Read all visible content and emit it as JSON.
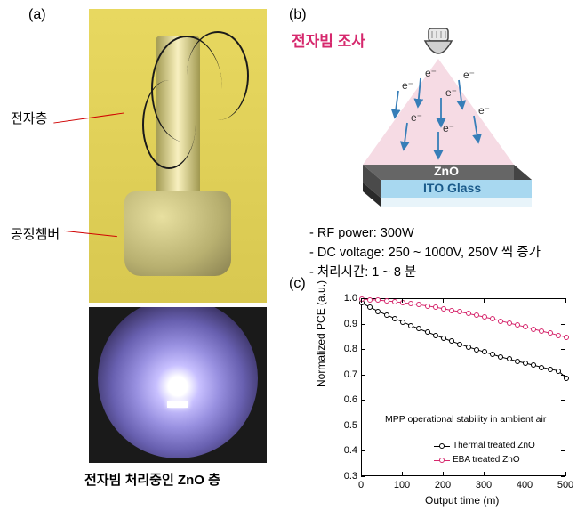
{
  "panel_labels": {
    "a": "(a)",
    "b": "(b)",
    "c": "(c)"
  },
  "panel_a": {
    "callout_top": "전자층",
    "callout_bottom": "공정챔버",
    "caption": "전자빔 처리중인 ZnO 층",
    "callout_color": "#d00000"
  },
  "panel_b": {
    "title": "전자빔 조사",
    "title_color": "#d6286d",
    "electron_label": "e⁻",
    "electron_color": "#377eb8",
    "zno_label": "ZnO",
    "zno_fill": "#666666",
    "ito_label": "ITO Glass",
    "ito_fill": "#a8d8f0",
    "beam_fill": "#f4d5df",
    "params": [
      "- RF power: 300W",
      "- DC voltage: 250 ~ 1000V, 250V 씩 증가",
      "- 처리시간: 1 ~ 8 분"
    ]
  },
  "panel_c": {
    "type": "scatter-line",
    "ylabel": "Normalized PCE (a.u.)",
    "xlabel": "Output time (m)",
    "caption": "MPP operational stability in ambient air",
    "xlim": [
      0,
      500
    ],
    "ylim": [
      0.3,
      1.0
    ],
    "xticks": [
      0,
      100,
      200,
      300,
      400,
      500
    ],
    "yticks": [
      0.3,
      0.4,
      0.5,
      0.6,
      0.7,
      0.8,
      0.9,
      1.0
    ],
    "series": [
      {
        "name": "Thermal treated ZnO",
        "color": "#000000",
        "x": [
          0,
          20,
          40,
          60,
          80,
          100,
          120,
          140,
          160,
          180,
          200,
          220,
          240,
          260,
          280,
          300,
          320,
          340,
          360,
          380,
          400,
          420,
          440,
          460,
          480,
          500
        ],
        "y": [
          0.985,
          0.968,
          0.952,
          0.938,
          0.924,
          0.91,
          0.896,
          0.883,
          0.87,
          0.858,
          0.846,
          0.834,
          0.823,
          0.812,
          0.802,
          0.792,
          0.782,
          0.773,
          0.764,
          0.756,
          0.748,
          0.74,
          0.732,
          0.725,
          0.718,
          0.69
        ]
      },
      {
        "name": "EBA treated ZnO",
        "color": "#d6286d",
        "x": [
          0,
          20,
          40,
          60,
          80,
          100,
          120,
          140,
          160,
          180,
          200,
          220,
          240,
          260,
          280,
          300,
          320,
          340,
          360,
          380,
          400,
          420,
          440,
          460,
          480,
          500
        ],
        "y": [
          1.0,
          0.998,
          0.996,
          0.993,
          0.99,
          0.986,
          0.982,
          0.978,
          0.973,
          0.968,
          0.962,
          0.956,
          0.95,
          0.943,
          0.936,
          0.929,
          0.922,
          0.914,
          0.906,
          0.898,
          0.89,
          0.882,
          0.874,
          0.866,
          0.858,
          0.85
        ]
      }
    ],
    "legend_items": [
      {
        "label": "Thermal treated ZnO",
        "color": "#000000"
      },
      {
        "label": "EBA treated ZnO",
        "color": "#d6286d"
      }
    ]
  }
}
